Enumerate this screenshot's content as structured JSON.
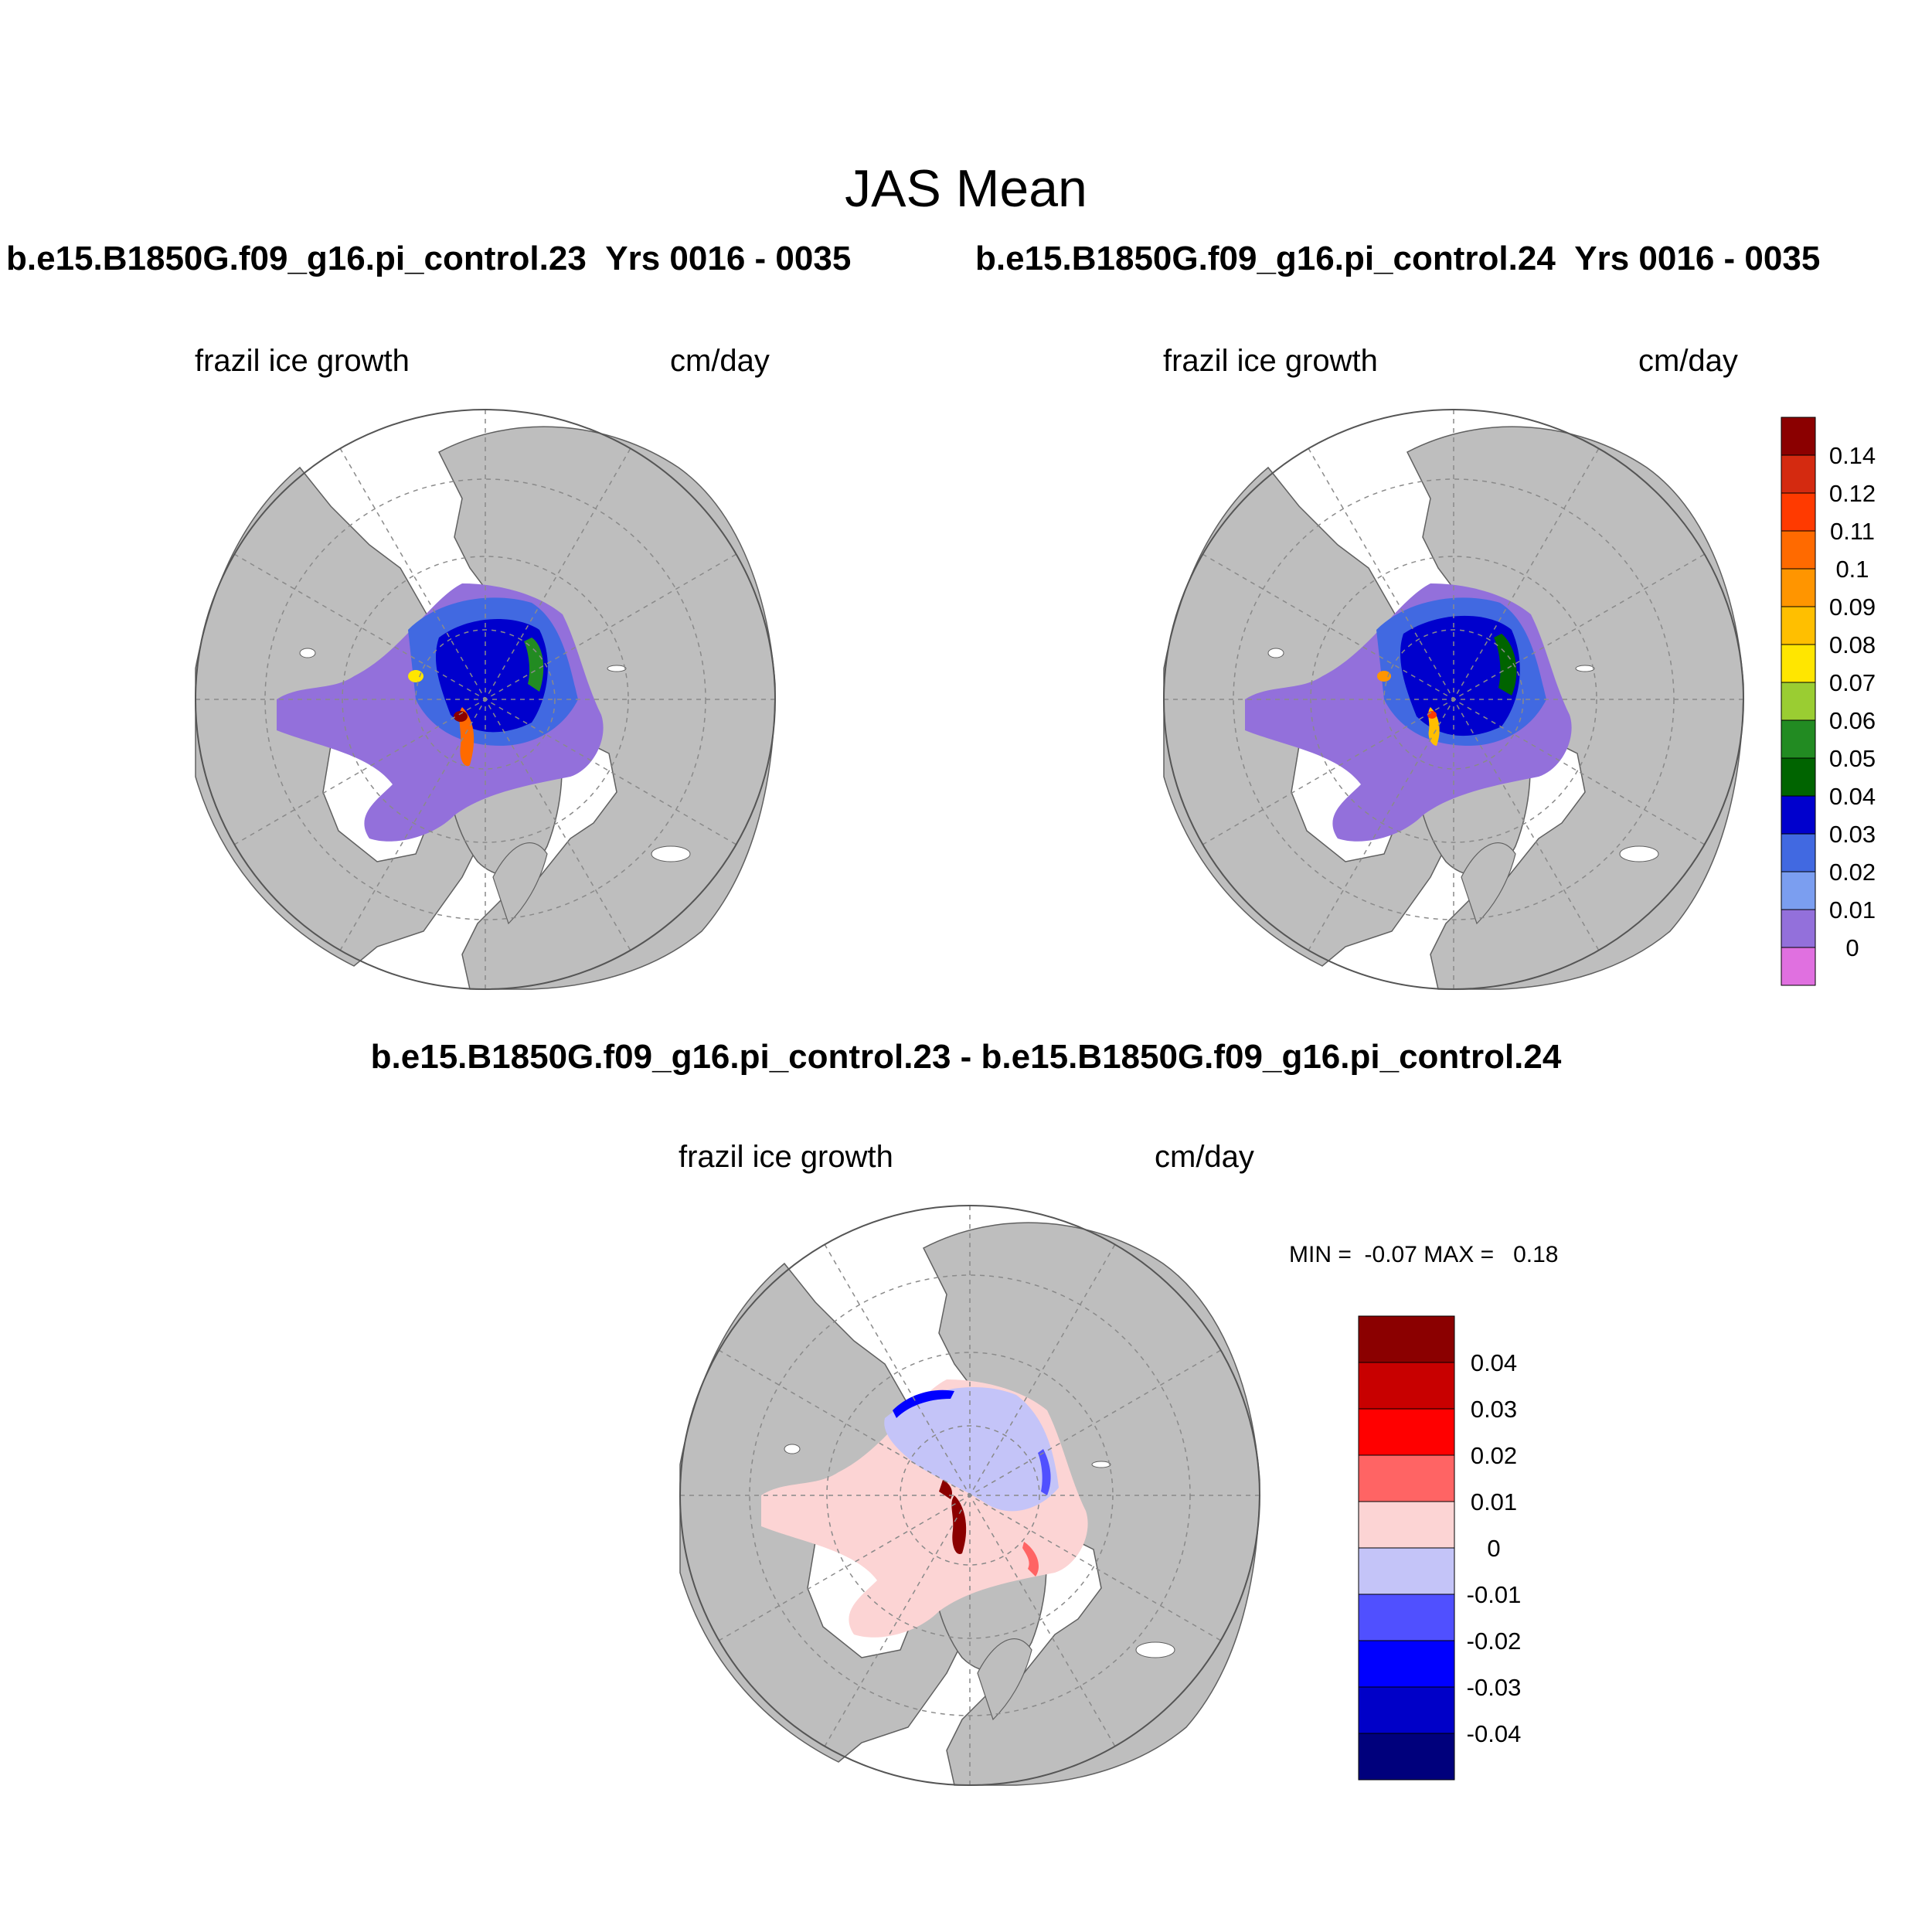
{
  "title": "JAS Mean",
  "panels": [
    {
      "run": "b.e15.B1850G.f09_g16.pi_control.23",
      "period": "Yrs 0016 - 0035",
      "variable": "frazil ice growth",
      "units": "cm/day"
    },
    {
      "run": "b.e15.B1850G.f09_g16.pi_control.24",
      "period": "Yrs 0016 - 0035",
      "variable": "frazil ice growth",
      "units": "cm/day"
    }
  ],
  "difference": {
    "title": "b.e15.B1850G.f09_g16.pi_control.23 - b.e15.B1850G.f09_g16.pi_control.24",
    "variable": "frazil ice growth",
    "units": "cm/day",
    "stats": "MIN =  -0.07 MAX =   0.18"
  },
  "map": {
    "projection": "north polar stereographic",
    "land_color": "#bebebe",
    "ocean_color": "#ffffff"
  },
  "colorbar_main": {
    "labels": [
      "0.14",
      "0.12",
      "0.11",
      "0.1",
      "0.09",
      "0.08",
      "0.07",
      "0.06",
      "0.05",
      "0.04",
      "0.03",
      "0.02",
      "0.01",
      "0"
    ],
    "colors": [
      "#8b0000",
      "#d42a10",
      "#ff3a00",
      "#ff6a00",
      "#ff9500",
      "#ffbf00",
      "#ffe600",
      "#9acd32",
      "#228b22",
      "#006400",
      "#0000cd",
      "#4169e1",
      "#7b9ef0",
      "#9370db",
      "#e070e0"
    ]
  },
  "colorbar_diff": {
    "labels": [
      "0.04",
      "0.03",
      "0.02",
      "0.01",
      "0",
      "-0.01",
      "-0.02",
      "-0.03",
      "-0.04"
    ],
    "colors": [
      "#8b0000",
      "#c80000",
      "#ff0000",
      "#ff6464",
      "#fcd4d4",
      "#c4c4f8",
      "#5050ff",
      "#0000ff",
      "#0000c8",
      "#00007c"
    ]
  }
}
